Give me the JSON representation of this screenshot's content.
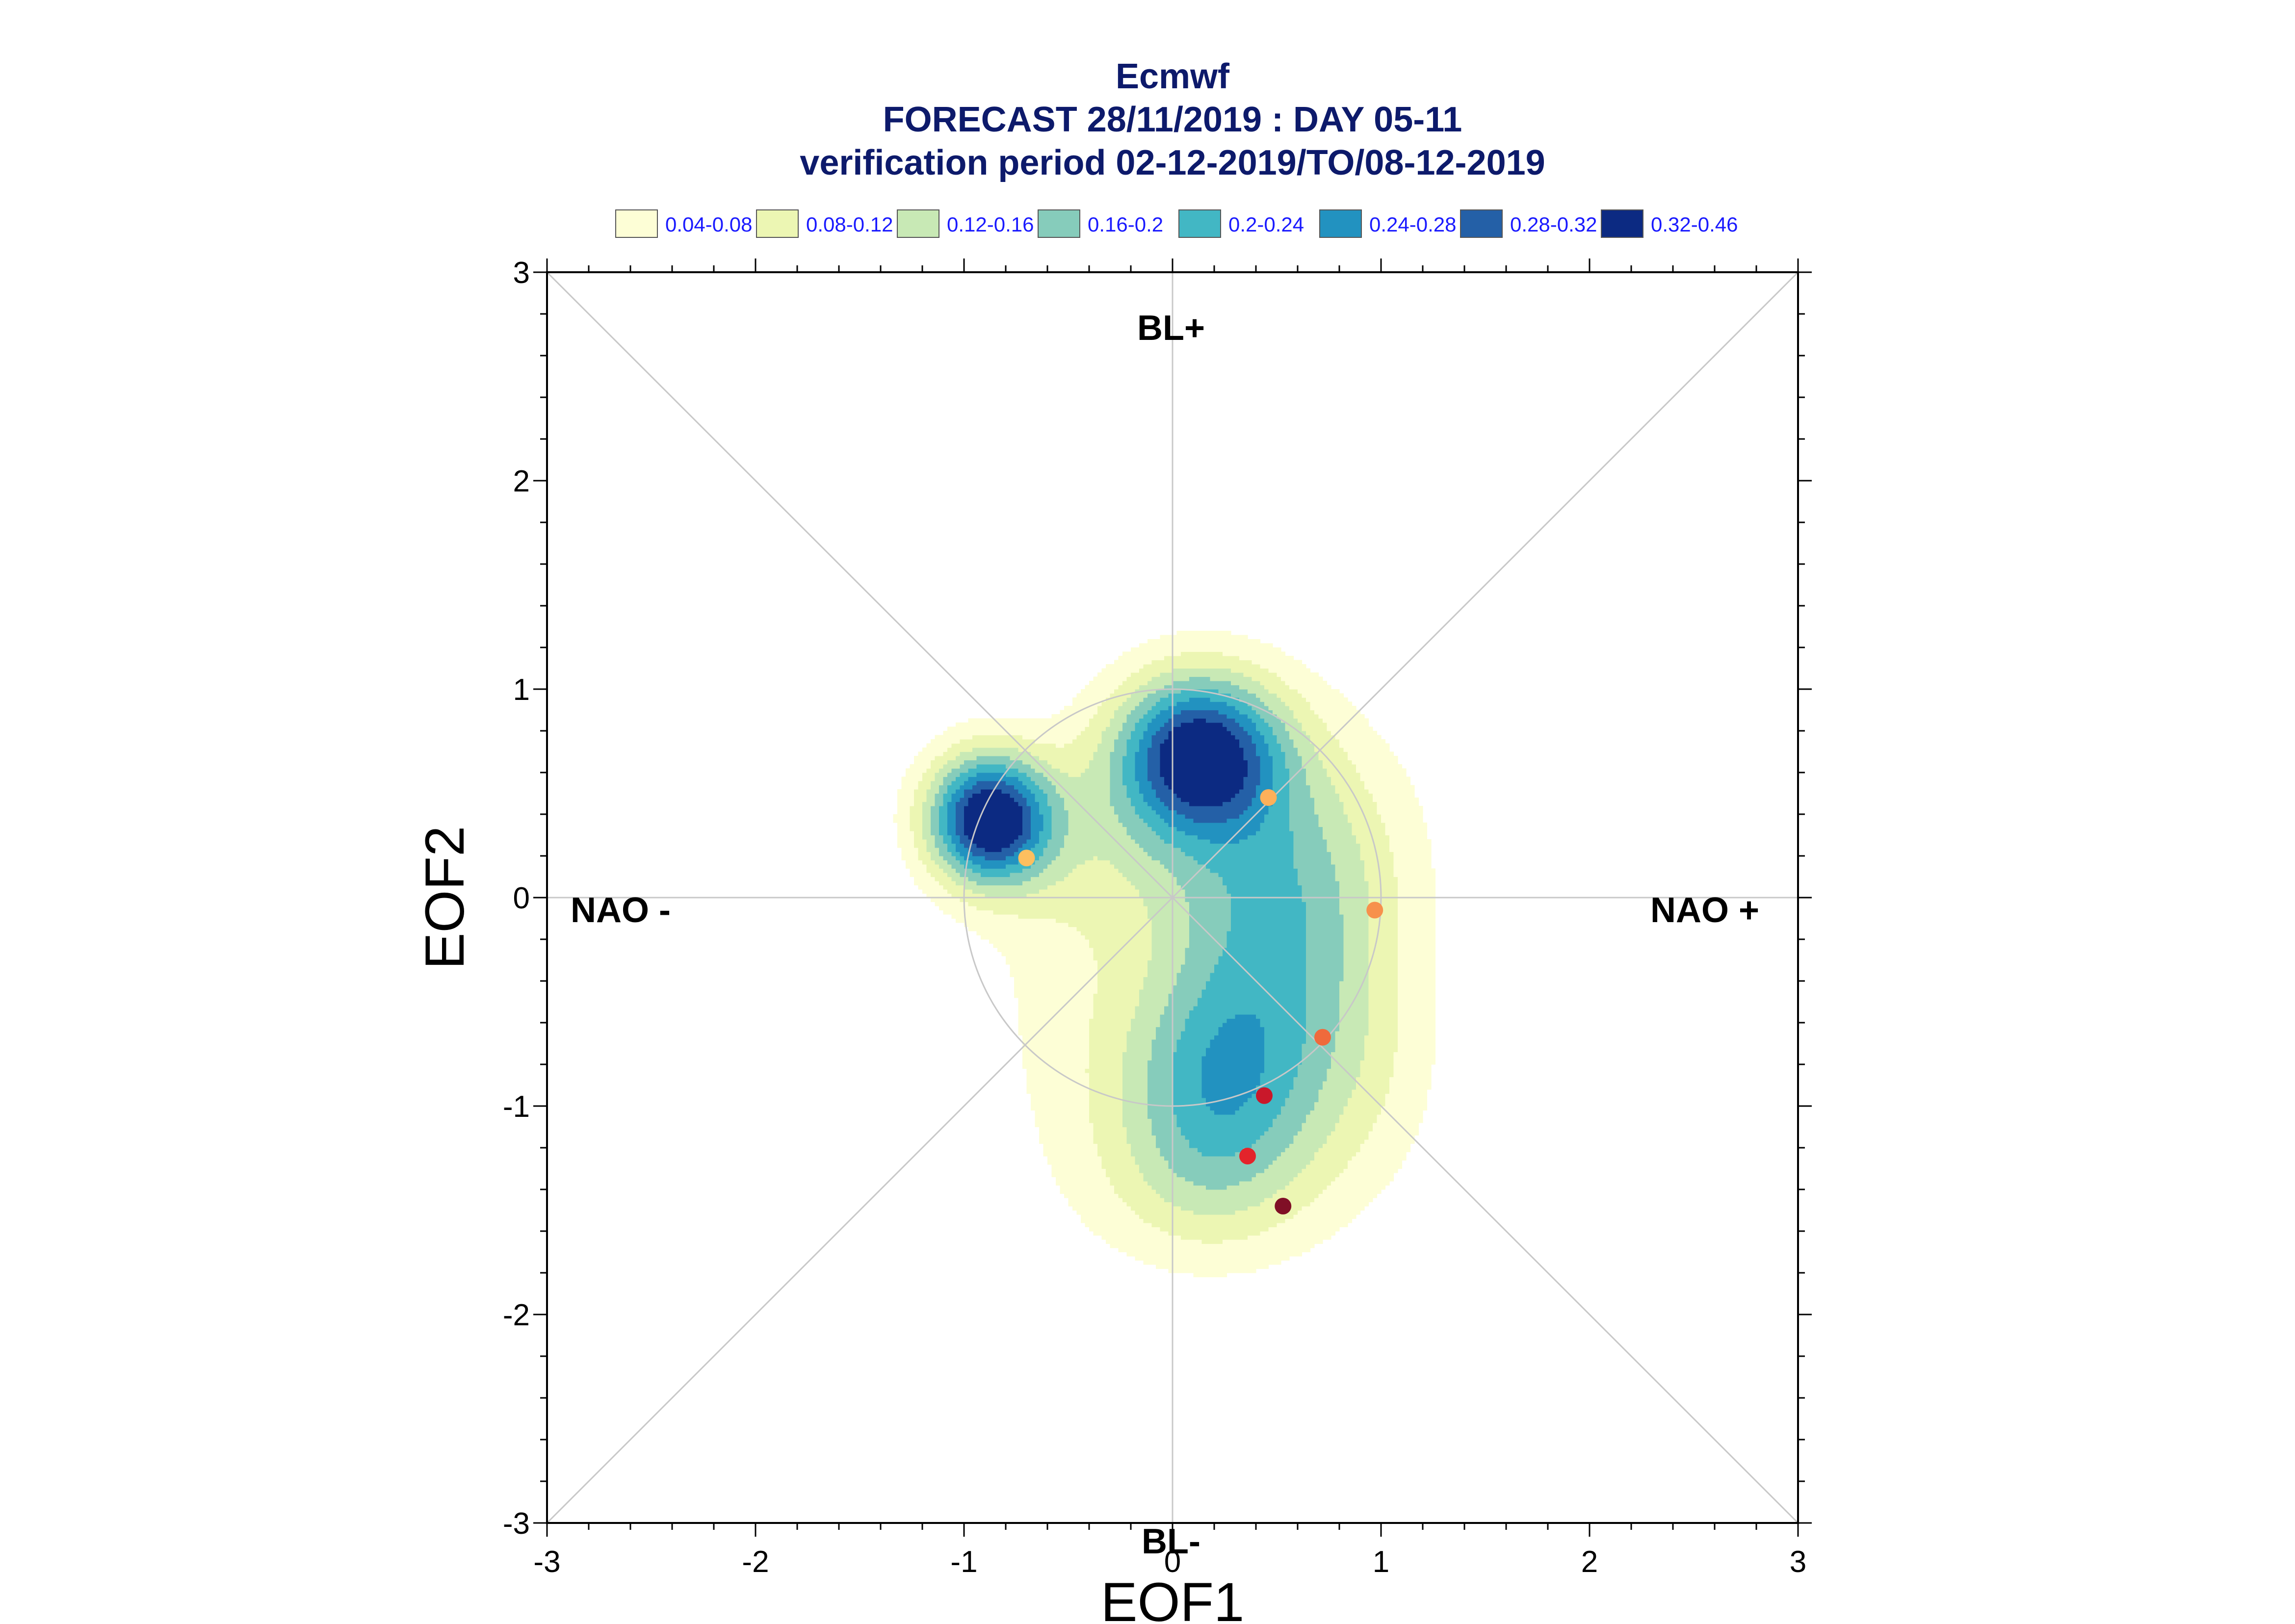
{
  "chart_data": {
    "type": "contour",
    "title": "Ecmwf",
    "subtitle": "FORECAST 28/11/2019 : DAY 05-11",
    "subtitle2": "verification period 02-12-2019/TO/08-12-2019",
    "xlabel": "EOF1",
    "ylabel": "EOF2",
    "xlim": [
      -3,
      3
    ],
    "ylim": [
      -3,
      3
    ],
    "xticks": [
      "-3",
      "-2",
      "-1",
      "0",
      "1",
      "2",
      "3"
    ],
    "yticks": [
      "-3",
      "-2",
      "-1",
      "0",
      "1",
      "2",
      "3"
    ],
    "regimes": {
      "top": "BL+",
      "bottom": "BL-",
      "left": "NAO -",
      "right": "NAO +"
    },
    "legend": [
      {
        "label": "0.04-0.08",
        "color": "#fdfed6"
      },
      {
        "label": "0.08-0.12",
        "color": "#ecf6b3"
      },
      {
        "label": "0.12-0.16",
        "color": "#c8e9b5"
      },
      {
        "label": "0.16-0.2",
        "color": "#86ccbb"
      },
      {
        "label": "0.2-0.24",
        "color": "#42b7c4"
      },
      {
        "label": "0.24-0.28",
        "color": "#2292c0"
      },
      {
        "label": "0.28-0.32",
        "color": "#2460a7"
      },
      {
        "label": "0.32-0.46",
        "color": "#0c2a82"
      }
    ],
    "density_centers": [
      {
        "x": 0.12,
        "y": 0.7,
        "peak": 0.46
      },
      {
        "x": -0.9,
        "y": 0.38,
        "peak": 0.4
      },
      {
        "x": 0.25,
        "y": -0.95,
        "peak": 0.27
      }
    ],
    "points": [
      {
        "x": -0.7,
        "y": 0.19,
        "color": "#fdbf5f"
      },
      {
        "x": 0.46,
        "y": 0.48,
        "color": "#fdb05a"
      },
      {
        "x": 0.97,
        "y": -0.06,
        "color": "#f7914c"
      },
      {
        "x": 0.72,
        "y": -0.67,
        "color": "#ef6a3c"
      },
      {
        "x": 0.44,
        "y": -0.95,
        "color": "#c9182a"
      },
      {
        "x": 0.36,
        "y": -1.24,
        "color": "#e3242b"
      },
      {
        "x": 0.53,
        "y": -1.48,
        "color": "#800f26"
      }
    ],
    "grid": true
  }
}
